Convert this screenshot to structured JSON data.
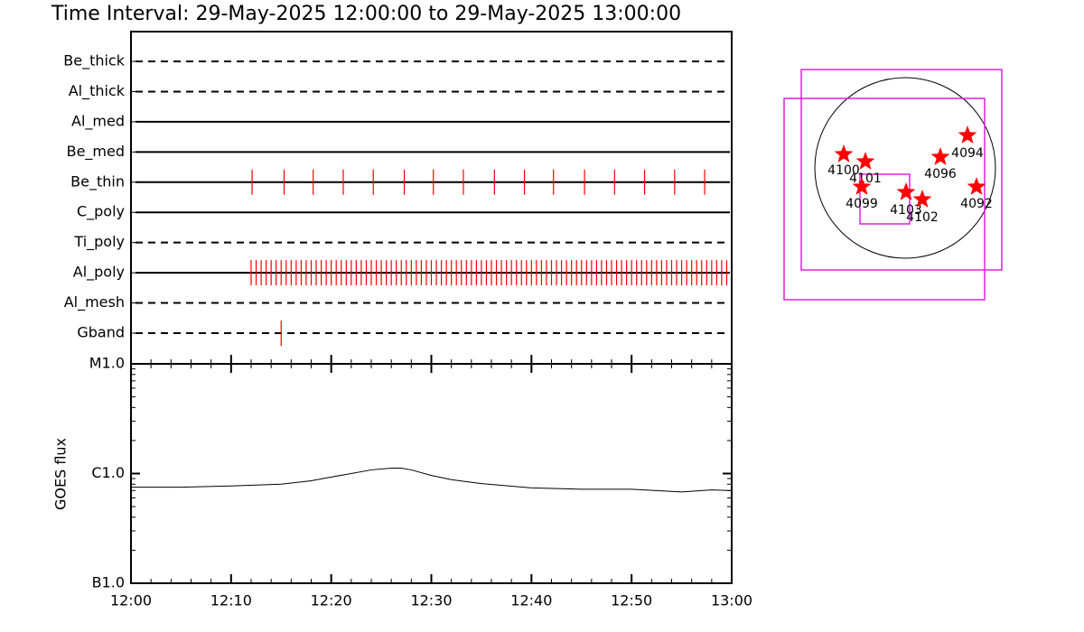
{
  "title": "Time Interval: 29-May-2025 12:00:00 to 29-May-2025 13:00:00",
  "chart_data": [
    {
      "type": "event",
      "color": "#ff0000",
      "xlim": [
        0,
        60
      ],
      "rows": [
        {
          "name": "Be_thick",
          "line_style": "dashed",
          "times": []
        },
        {
          "name": "Al_thick",
          "line_style": "dashed",
          "times": []
        },
        {
          "name": "Al_med",
          "line_style": "solid",
          "times": []
        },
        {
          "name": "Be_med",
          "line_style": "solid",
          "times": []
        },
        {
          "name": "Be_thin",
          "line_style": "solid",
          "times": [
            12.1,
            15.3,
            18.2,
            21.2,
            24.2,
            27.3,
            30.2,
            33.2,
            36.3,
            39.3,
            42.2,
            45.3,
            48.3,
            51.3,
            54.3,
            57.3
          ]
        },
        {
          "name": "C_poly",
          "line_style": "solid",
          "times": []
        },
        {
          "name": "Ti_poly",
          "line_style": "dashed",
          "times": []
        },
        {
          "name": "Al_poly",
          "line_style": "solid",
          "times": [
            12,
            12.5,
            13,
            13.5,
            14,
            14.5,
            15,
            15.5,
            16,
            16.5,
            17,
            17.5,
            18,
            18.5,
            19,
            19.5,
            20,
            20.5,
            21,
            21.5,
            22,
            22.5,
            23,
            23.5,
            24,
            24.5,
            25,
            25.5,
            26,
            26.5,
            27,
            27.5,
            28,
            28.5,
            29,
            29.5,
            30,
            30.5,
            31,
            31.5,
            32,
            32.5,
            33,
            33.5,
            34,
            34.5,
            35,
            35.5,
            36,
            36.5,
            37,
            37.5,
            38,
            38.5,
            39,
            39.5,
            40,
            40.5,
            41,
            41.5,
            42,
            42.5,
            43,
            43.5,
            44,
            44.5,
            45,
            45.5,
            46,
            46.5,
            47,
            47.5,
            48,
            48.5,
            49,
            49.5,
            50,
            50.5,
            51,
            51.5,
            52,
            52.5,
            53,
            53.5,
            54,
            54.5,
            55,
            55.5,
            56,
            56.5,
            57,
            57.5,
            58,
            58.5,
            59,
            59.5
          ]
        },
        {
          "name": "Al_mesh",
          "line_style": "dashed",
          "times": []
        },
        {
          "name": "Gband",
          "line_style": "dashed",
          "times": [
            15.0
          ]
        }
      ]
    },
    {
      "type": "line",
      "ylabel": "GOES flux",
      "color": "#000000",
      "log": true,
      "xlim": [
        0,
        60
      ],
      "xticks": [
        {
          "value": 0,
          "label": "12:00"
        },
        {
          "value": 10,
          "label": "12:10"
        },
        {
          "value": 20,
          "label": "12:20"
        },
        {
          "value": 30,
          "label": "12:30"
        },
        {
          "value": 40,
          "label": "12:40"
        },
        {
          "value": 50,
          "label": "12:50"
        },
        {
          "value": 60,
          "label": "13:00"
        }
      ],
      "ylim": [
        1e-07,
        1e-05
      ],
      "yticks": [
        {
          "value": 1e-05,
          "label": "M1.0"
        },
        {
          "value": 1e-06,
          "label": "C1.0"
        },
        {
          "value": 1e-07,
          "label": "B1.0"
        }
      ],
      "x": [
        0,
        5,
        10,
        15,
        18,
        20,
        22,
        24,
        26,
        27,
        28,
        30,
        32,
        35,
        40,
        45,
        50,
        55,
        58,
        60
      ],
      "values": [
        7.5e-07,
        7.5e-07,
        7.7e-07,
        8e-07,
        8.6e-07,
        9.3e-07,
        1e-06,
        1.08e-06,
        1.12e-06,
        1.12e-06,
        1.08e-06,
        9.6e-07,
        8.8e-07,
        8.1e-07,
        7.4e-07,
        7.2e-07,
        7.2e-07,
        6.8e-07,
        7.1e-07,
        7e-07
      ]
    }
  ],
  "map": {
    "disk_color": "#000000",
    "box_color": "#e020e0",
    "star_color": "#ff0000",
    "regions": [
      "4100",
      "4101",
      "4099",
      "4103",
      "4102",
      "4096",
      "4094",
      "4092"
    ]
  }
}
